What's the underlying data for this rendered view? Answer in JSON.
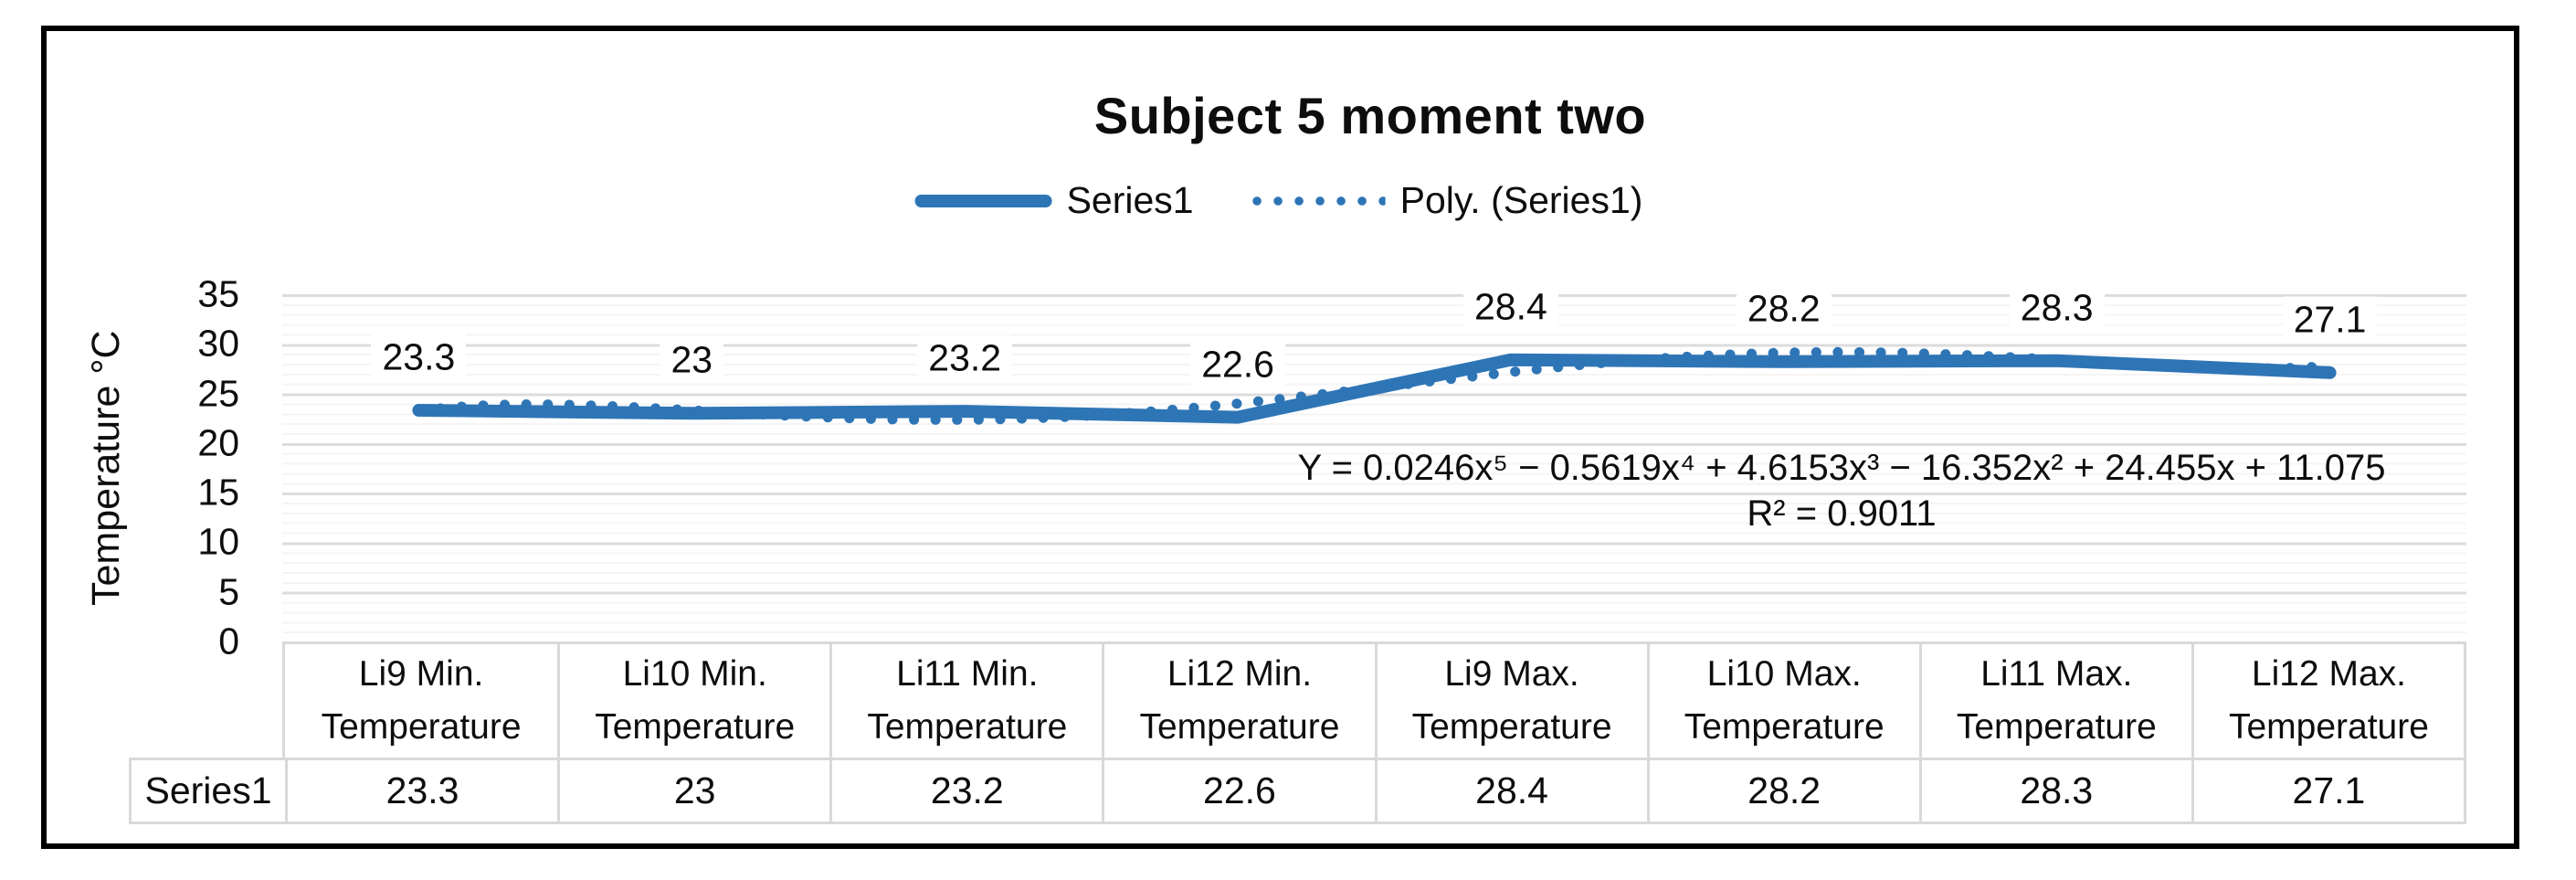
{
  "chart_data": {
    "type": "line",
    "title": "Subject 5 moment two",
    "y_axis_title": "Temperature °C",
    "ylim": [
      0,
      35
    ],
    "yticks": [
      35,
      30,
      25,
      20,
      15,
      10,
      5,
      0
    ],
    "grid": "horizontal, minor every 1 unit, major every 5 units",
    "legend_position": "top-center",
    "categories": [
      "Li9 Min.\nTemperature",
      "Li10 Min.\nTemperature",
      "Li11 Min.\nTemperature",
      "Li12 Min.\nTemperature",
      "Li9 Max.\nTemperature",
      "Li10 Max.\nTemperature",
      "Li11 Max.\nTemperature",
      "Li12 Max.\nTemperature"
    ],
    "series": [
      {
        "name": "Series1",
        "values": [
          23.3,
          23,
          23.2,
          22.6,
          28.4,
          28.2,
          28.3,
          27.1
        ]
      }
    ],
    "trendline": {
      "name": "Poly. (Series1)",
      "equation": "Y = 0.0246x⁵ − 0.5619x⁴ + 4.6153x³ − 16.352x² + 24.455x + 11.075",
      "r_squared": "R² = 0.9011",
      "coefficients": [
        0.0246,
        -0.5619,
        4.6153,
        -16.352,
        24.455,
        11.075
      ]
    },
    "legend": [
      "Series1",
      "Poly. (Series1)"
    ],
    "colors": {
      "series": "#2E75B6",
      "trend": "#2E75B6"
    }
  },
  "table": {
    "row_label": "Series1",
    "headers": [
      "Li9 Min.\nTemperature",
      "Li10 Min.\nTemperature",
      "Li11 Min.\nTemperature",
      "Li12 Min.\nTemperature",
      "Li9 Max.\nTemperature",
      "Li10 Max.\nTemperature",
      "Li11 Max.\nTemperature",
      "Li12 Max.\nTemperature"
    ],
    "values": [
      23.3,
      23,
      23.2,
      22.6,
      28.4,
      28.2,
      28.3,
      27.1
    ]
  }
}
